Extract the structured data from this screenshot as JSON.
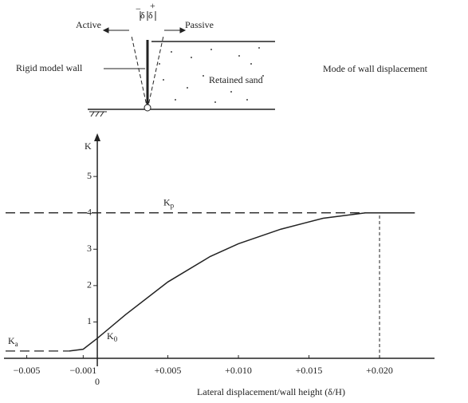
{
  "diagram": {
    "active": "Active",
    "passive": "Passive",
    "minus_delta": "−",
    "plus_delta": "+",
    "delta": "δ",
    "wall": "Rigid model wall",
    "sand": "Retained sand",
    "mode": "Mode of wall displacement"
  },
  "chart_data": {
    "type": "line",
    "ylabel": "K",
    "xlabel": "Lateral displacement/wall height (δ/H)",
    "xlim": [
      -0.0065,
      0.0235
    ],
    "ylim": [
      0,
      6.1
    ],
    "xticks": [
      {
        "value": -0.005,
        "label": "−0.005"
      },
      {
        "value": -0.001,
        "label": "−0.001"
      },
      0,
      {
        "value": 0.005,
        "label": "+0.005"
      },
      {
        "value": 0.01,
        "label": "+0.010"
      },
      {
        "value": 0.015,
        "label": "+0.015"
      },
      {
        "value": 0.02,
        "label": "+0.020"
      }
    ],
    "yticks": [
      1,
      2,
      3,
      4,
      5
    ],
    "color": "#222222",
    "series": [
      {
        "x": [
          -0.002,
          -0.001,
          0,
          0.002,
          0.005,
          0.008,
          0.01,
          0.013,
          0.016,
          0.019,
          0.0225
        ],
        "values": [
          0.2,
          0.25,
          0.55,
          1.2,
          2.1,
          2.8,
          3.15,
          3.55,
          3.85,
          4,
          4
        ]
      }
    ],
    "reference_lines": [
      {
        "label": "K",
        "sub": "p",
        "y": 4
      },
      {
        "label": "K",
        "sub": "a",
        "y": 0.2
      }
    ],
    "point_labels": [
      {
        "label": "K",
        "sub": "0"
      }
    ],
    "vline": 0.02
  }
}
